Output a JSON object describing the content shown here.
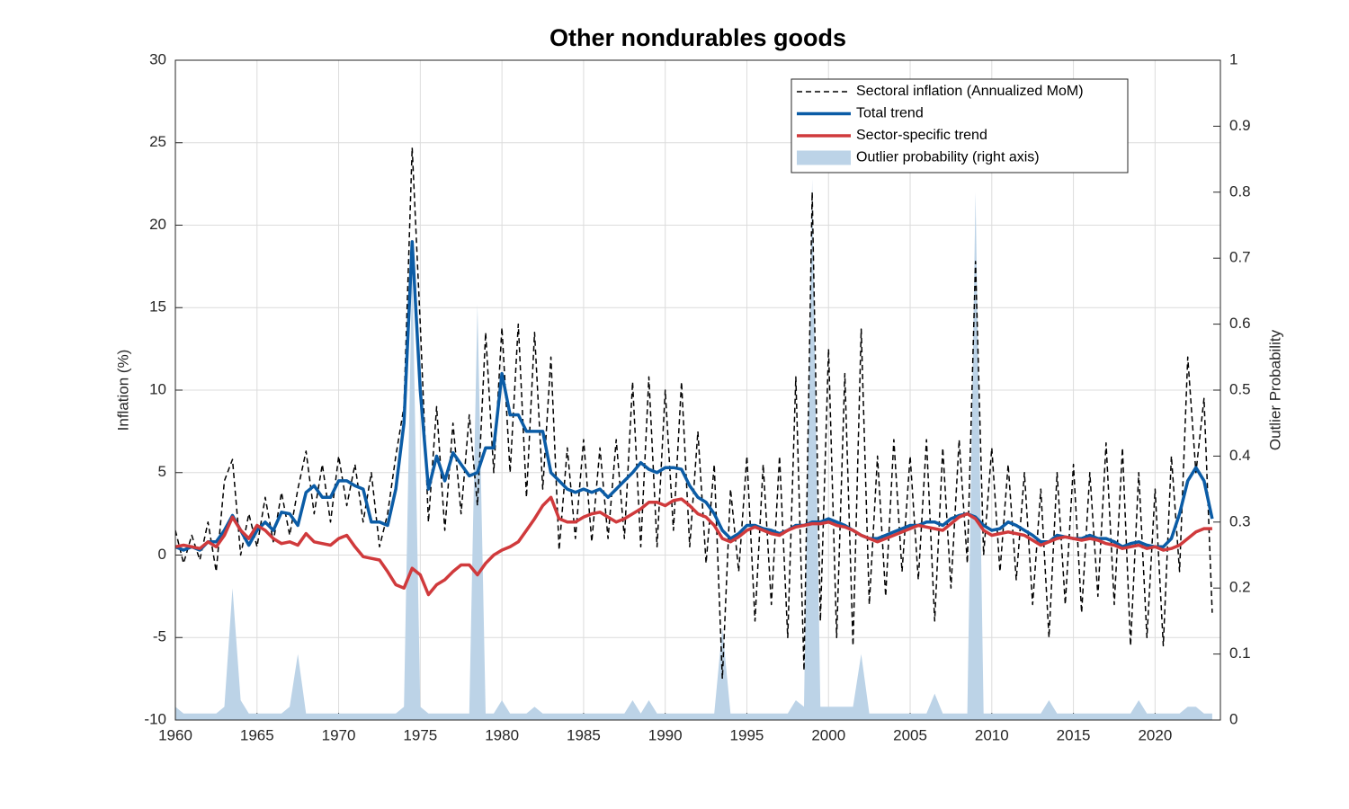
{
  "chart_data": {
    "type": "line",
    "title": "Other nondurables goods",
    "ylabel": "Inflation (%)",
    "y2label": "Outlier Probability",
    "xlim": [
      1960,
      2024
    ],
    "xticks": [
      1960,
      1965,
      1970,
      1975,
      1980,
      1985,
      1990,
      1995,
      2000,
      2005,
      2010,
      2015,
      2020
    ],
    "ylim": [
      -10,
      30
    ],
    "yticks": [
      -10,
      -5,
      0,
      5,
      10,
      15,
      20,
      25,
      30
    ],
    "y2lim": [
      0,
      1
    ],
    "y2ticks": [
      0,
      0.1,
      0.2,
      0.3,
      0.4,
      0.5,
      0.6,
      0.7,
      0.8,
      0.9,
      1
    ],
    "grid": true,
    "legend": "upper right",
    "x": [
      1960,
      1960.5,
      1961,
      1961.5,
      1962,
      1962.5,
      1963,
      1963.5,
      1964,
      1964.5,
      1965,
      1965.5,
      1966,
      1966.5,
      1967,
      1967.5,
      1968,
      1968.5,
      1969,
      1969.5,
      1970,
      1970.5,
      1971,
      1971.5,
      1972,
      1972.5,
      1973,
      1973.5,
      1974,
      1974.5,
      1975,
      1975.5,
      1976,
      1976.5,
      1977,
      1977.5,
      1978,
      1978.5,
      1979,
      1979.5,
      1980,
      1980.5,
      1981,
      1981.5,
      1982,
      1982.5,
      1983,
      1983.5,
      1984,
      1984.5,
      1985,
      1985.5,
      1986,
      1986.5,
      1987,
      1987.5,
      1988,
      1988.5,
      1989,
      1989.5,
      1990,
      1990.5,
      1991,
      1991.5,
      1992,
      1992.5,
      1993,
      1993.5,
      1994,
      1994.5,
      1995,
      1995.5,
      1996,
      1996.5,
      1997,
      1997.5,
      1998,
      1998.5,
      1999,
      1999.5,
      2000,
      2000.5,
      2001,
      2001.5,
      2002,
      2002.5,
      2003,
      2003.5,
      2004,
      2004.5,
      2005,
      2005.5,
      2006,
      2006.5,
      2007,
      2007.5,
      2008,
      2008.5,
      2009,
      2009.5,
      2010,
      2010.5,
      2011,
      2011.5,
      2012,
      2012.5,
      2013,
      2013.5,
      2014,
      2014.5,
      2015,
      2015.5,
      2016,
      2016.5,
      2017,
      2017.5,
      2018,
      2018.5,
      2019,
      2019.5,
      2020,
      2020.5,
      2021,
      2021.5,
      2022,
      2022.5,
      2023,
      2023.5
    ],
    "series": [
      {
        "name": "Sectoral inflation (Annualized MoM)",
        "color": "#000000",
        "style": "dashed",
        "values": [
          1.5,
          -0.5,
          1.2,
          -0.3,
          2.0,
          -1.0,
          4.5,
          5.8,
          0.0,
          2.5,
          0.5,
          3.5,
          0.8,
          3.8,
          1.2,
          4.0,
          6.3,
          2.5,
          5.5,
          2.0,
          6.0,
          3.0,
          5.5,
          2.0,
          5.0,
          0.5,
          2.5,
          6.0,
          9.0,
          24.7,
          14.0,
          2.0,
          9.0,
          1.5,
          8.0,
          2.5,
          8.5,
          3.0,
          13.5,
          5.0,
          13.8,
          5.0,
          14.0,
          3.5,
          13.5,
          4.0,
          12.0,
          0.3,
          6.5,
          1.0,
          7.0,
          0.8,
          6.5,
          1.0,
          7.0,
          1.0,
          10.5,
          0.5,
          10.8,
          0.5,
          10.0,
          1.5,
          10.5,
          0.5,
          7.5,
          -0.5,
          5.5,
          -7.5,
          4.0,
          -1.0,
          6.0,
          -4.0,
          5.5,
          -3.0,
          6.0,
          -5.0,
          10.8,
          -7.0,
          22.0,
          -4.0,
          12.5,
          -5.0,
          11.0,
          -5.5,
          13.7,
          -3.0,
          6.0,
          -2.5,
          7.0,
          -1.0,
          6.0,
          -1.5,
          7.0,
          -4.0,
          6.5,
          -2.0,
          7.0,
          -0.5,
          17.8,
          0.0,
          6.5,
          -1.0,
          5.5,
          -1.5,
          5.0,
          -3.0,
          4.0,
          -5.0,
          5.0,
          -3.0,
          5.5,
          -3.5,
          5.0,
          -2.5,
          6.8,
          -3.0,
          6.5,
          -5.5,
          5.0,
          -5.0,
          4.0,
          -5.5,
          6.0,
          -1.0,
          12.0,
          5.0,
          9.5,
          -3.5
        ]
      },
      {
        "name": "Total trend",
        "color": "#0b5ca6",
        "style": "solid",
        "values": [
          0.5,
          0.3,
          0.5,
          0.3,
          0.8,
          0.8,
          1.5,
          2.4,
          1.5,
          0.6,
          1.5,
          2.0,
          1.5,
          2.6,
          2.5,
          1.8,
          3.8,
          4.2,
          3.5,
          3.5,
          4.5,
          4.5,
          4.2,
          4.0,
          2.0,
          2.0,
          1.8,
          4.0,
          8.0,
          19.0,
          10.0,
          4.0,
          6.0,
          4.5,
          6.2,
          5.5,
          4.8,
          5.0,
          6.5,
          6.5,
          11.0,
          8.5,
          8.5,
          7.5,
          7.5,
          7.5,
          5.0,
          4.5,
          4.0,
          3.8,
          4.0,
          3.8,
          4.0,
          3.5,
          4.0,
          4.5,
          5.0,
          5.6,
          5.2,
          5.0,
          5.3,
          5.3,
          5.2,
          4.2,
          3.5,
          3.2,
          2.5,
          1.5,
          1.0,
          1.3,
          1.8,
          1.8,
          1.6,
          1.5,
          1.3,
          1.5,
          1.8,
          1.8,
          2.0,
          2.0,
          2.2,
          2.0,
          1.8,
          1.5,
          1.2,
          1.0,
          1.0,
          1.2,
          1.4,
          1.6,
          1.8,
          1.8,
          2.0,
          2.0,
          1.8,
          2.2,
          2.4,
          2.5,
          2.3,
          1.8,
          1.5,
          1.6,
          2.0,
          1.8,
          1.5,
          1.2,
          0.8,
          0.8,
          1.2,
          1.1,
          1.0,
          1.0,
          1.2,
          1.0,
          1.0,
          0.8,
          0.5,
          0.7,
          0.8,
          0.6,
          0.5,
          0.5,
          1.0,
          2.5,
          4.5,
          5.3,
          4.5,
          2.2
        ]
      },
      {
        "name": "Sector-specific trend",
        "color": "#d03a3c",
        "style": "solid",
        "values": [
          0.5,
          0.6,
          0.5,
          0.4,
          0.8,
          0.5,
          1.2,
          2.3,
          1.5,
          1.0,
          1.8,
          1.5,
          1.0,
          0.7,
          0.8,
          0.6,
          1.3,
          0.8,
          0.7,
          0.6,
          1.0,
          1.2,
          0.5,
          -0.1,
          -0.2,
          -0.3,
          -1.0,
          -1.8,
          -2.0,
          -0.8,
          -1.2,
          -2.4,
          -1.8,
          -1.5,
          -1.0,
          -0.6,
          -0.6,
          -1.2,
          -0.5,
          0.0,
          0.3,
          0.5,
          0.8,
          1.5,
          2.2,
          3.0,
          3.5,
          2.2,
          2.0,
          2.0,
          2.3,
          2.5,
          2.6,
          2.3,
          2.0,
          2.2,
          2.5,
          2.8,
          3.2,
          3.2,
          3.0,
          3.3,
          3.4,
          3.0,
          2.5,
          2.3,
          1.8,
          1.0,
          0.8,
          1.1,
          1.5,
          1.7,
          1.5,
          1.3,
          1.2,
          1.5,
          1.7,
          1.8,
          1.9,
          1.9,
          2.0,
          1.8,
          1.7,
          1.5,
          1.2,
          1.0,
          0.8,
          1.0,
          1.2,
          1.4,
          1.6,
          1.8,
          1.7,
          1.6,
          1.5,
          1.9,
          2.3,
          2.5,
          2.2,
          1.5,
          1.2,
          1.3,
          1.4,
          1.3,
          1.2,
          0.9,
          0.6,
          0.8,
          1.0,
          1.1,
          1.0,
          0.9,
          1.0,
          0.9,
          0.7,
          0.6,
          0.4,
          0.5,
          0.6,
          0.4,
          0.5,
          0.3,
          0.4,
          0.6,
          1.0,
          1.4,
          1.6,
          1.6
        ]
      },
      {
        "name": "Outlier probability (right axis)",
        "color": "#bcd3e7",
        "style": "area",
        "axis": "y2",
        "values": [
          0.02,
          0.01,
          0.01,
          0.01,
          0.01,
          0.01,
          0.02,
          0.2,
          0.03,
          0.01,
          0.01,
          0.01,
          0.01,
          0.01,
          0.02,
          0.1,
          0.01,
          0.01,
          0.01,
          0.01,
          0.01,
          0.01,
          0.01,
          0.01,
          0.01,
          0.01,
          0.01,
          0.01,
          0.02,
          0.7,
          0.02,
          0.01,
          0.01,
          0.01,
          0.01,
          0.01,
          0.01,
          0.63,
          0.01,
          0.01,
          0.03,
          0.01,
          0.01,
          0.01,
          0.02,
          0.01,
          0.01,
          0.01,
          0.01,
          0.01,
          0.01,
          0.01,
          0.01,
          0.01,
          0.01,
          0.01,
          0.03,
          0.01,
          0.03,
          0.01,
          0.01,
          0.01,
          0.01,
          0.01,
          0.01,
          0.01,
          0.01,
          0.14,
          0.01,
          0.01,
          0.01,
          0.01,
          0.01,
          0.01,
          0.01,
          0.01,
          0.03,
          0.02,
          0.82,
          0.02,
          0.02,
          0.02,
          0.02,
          0.02,
          0.1,
          0.01,
          0.01,
          0.01,
          0.01,
          0.01,
          0.01,
          0.01,
          0.01,
          0.04,
          0.01,
          0.01,
          0.01,
          0.01,
          0.8,
          0.01,
          0.01,
          0.01,
          0.01,
          0.01,
          0.01,
          0.01,
          0.01,
          0.03,
          0.01,
          0.01,
          0.01,
          0.01,
          0.01,
          0.01,
          0.01,
          0.01,
          0.01,
          0.01,
          0.03,
          0.01,
          0.01,
          0.01,
          0.01,
          0.01,
          0.02,
          0.02,
          0.01,
          0.01
        ]
      }
    ]
  }
}
